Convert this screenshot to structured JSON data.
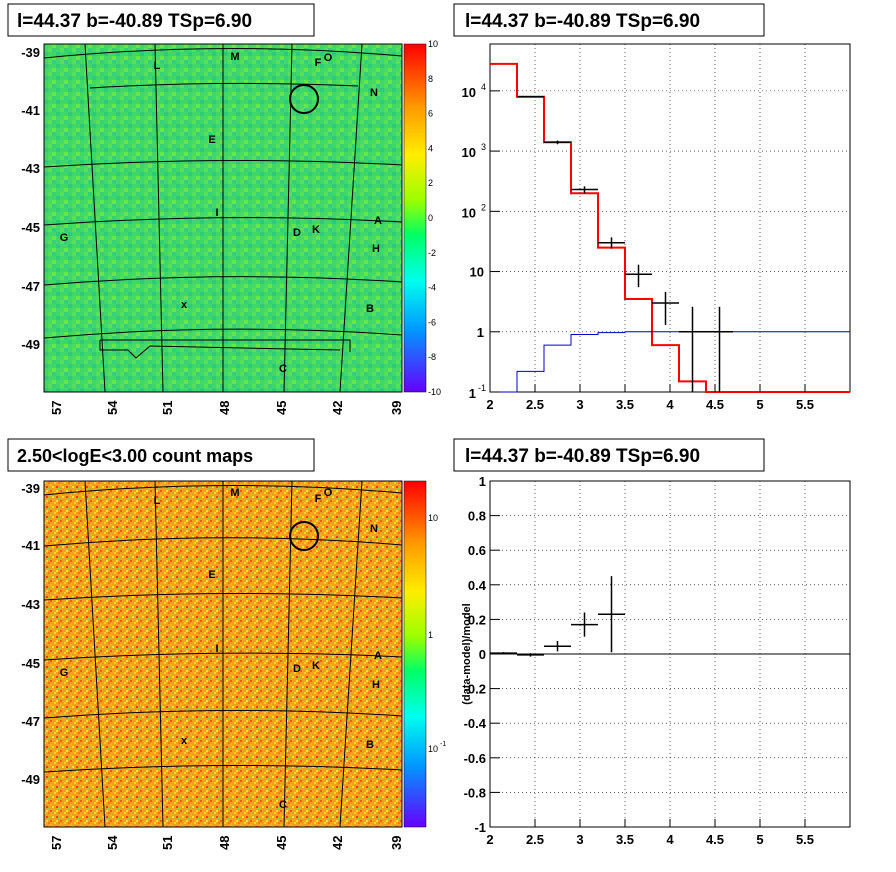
{
  "panels": {
    "top_left_title": "l=44.37 b=-40.89 TSp=6.90",
    "top_right_title": "l=44.37 b=-40.89 TSp=6.90",
    "bottom_left_title": "2.50<logE<3.00 count maps",
    "bottom_right_title": "l=44.37 b=-40.89 TSp=6.90"
  },
  "maps": {
    "x_ticks": [
      "57",
      "54",
      "51",
      "48",
      "45",
      "42",
      "39"
    ],
    "y_ticks": [
      "-39",
      "-41",
      "-43",
      "-45",
      "-47",
      "-49"
    ],
    "colorbar_top_ticks": [
      "10",
      "8",
      "6",
      "4",
      "2",
      "0",
      "-2",
      "-4",
      "-6",
      "-8",
      "-10"
    ],
    "colorbar_bottom_ticks": [
      "10",
      "1",
      "10",
      "-1"
    ],
    "source_labels": [
      {
        "t": "M"
      },
      {
        "t": "L"
      },
      {
        "t": "F"
      },
      {
        "t": "O"
      },
      {
        "t": "N"
      },
      {
        "t": "E"
      },
      {
        "t": "I"
      },
      {
        "t": "D"
      },
      {
        "t": "K"
      },
      {
        "t": "A"
      },
      {
        "t": "H"
      },
      {
        "t": "G"
      },
      {
        "t": "B"
      },
      {
        "t": "C"
      },
      {
        "t": "x"
      }
    ]
  },
  "chart_data": [
    {
      "type": "line",
      "panel": "top_right",
      "title": "l=44.37 b=-40.89 TSp=6.90",
      "xlabel": "",
      "ylabel": "",
      "xlim": [
        2.0,
        6.0
      ],
      "ylim": [
        0.1,
        60000
      ],
      "yscale": "log",
      "grid": true,
      "x_ticks": [
        "2",
        "2.5",
        "3",
        "3.5",
        "4",
        "4.5",
        "5",
        "5.5"
      ],
      "y_ticks": [
        {
          "label": "1",
          "exp": "-1",
          "base": "10"
        },
        {
          "label": "1",
          "exp": "",
          "base": ""
        },
        {
          "label": "10",
          "exp": "",
          "base": ""
        },
        {
          "label": "10",
          "exp": "2",
          "base": "10"
        },
        {
          "label": "10",
          "exp": "3",
          "base": "10"
        },
        {
          "label": "10",
          "exp": "4",
          "base": "10"
        }
      ],
      "series": [
        {
          "color": "#ff0000",
          "kind": "step",
          "edges": [
            2.0,
            2.3,
            2.6,
            2.9,
            3.2,
            3.5,
            3.8,
            4.1,
            4.4,
            6.0
          ],
          "values": [
            28000,
            8000,
            1400,
            200,
            25,
            3.5,
            0.6,
            0.15,
            0.1
          ]
        },
        {
          "color": "#0000cc",
          "kind": "step",
          "edges": [
            2.0,
            2.3,
            2.6,
            2.9,
            3.2,
            3.5,
            3.8,
            4.1,
            4.4,
            6.0
          ],
          "values": [
            0.05,
            0.22,
            0.6,
            0.9,
            0.97,
            1.0,
            1.0,
            1.0,
            1.0
          ]
        },
        {
          "color": "#000000",
          "kind": "errorbar",
          "points": [
            {
              "x": 2.45,
              "xerr": 0.15,
              "y": 8000,
              "ylo": 7800,
              "yhi": 8200
            },
            {
              "x": 2.75,
              "xerr": 0.15,
              "y": 1400,
              "ylo": 1300,
              "yhi": 1500
            },
            {
              "x": 3.05,
              "xerr": 0.15,
              "y": 230,
              "ylo": 200,
              "yhi": 260
            },
            {
              "x": 3.35,
              "xerr": 0.15,
              "y": 30,
              "ylo": 24,
              "yhi": 37
            },
            {
              "x": 3.65,
              "xerr": 0.15,
              "y": 9,
              "ylo": 5.5,
              "yhi": 13
            },
            {
              "x": 3.95,
              "xerr": 0.15,
              "y": 3,
              "ylo": 1.3,
              "yhi": 4.6
            },
            {
              "x": 4.25,
              "xerr": 0.15,
              "y": 1,
              "ylo": 0.1,
              "yhi": 2.6
            },
            {
              "x": 4.55,
              "xerr": 0.15,
              "y": 1,
              "ylo": 0.1,
              "yhi": 2.6
            }
          ]
        }
      ]
    },
    {
      "type": "scatter",
      "panel": "bottom_right",
      "title": "l=44.37 b=-40.89 TSp=6.90",
      "xlabel": "",
      "ylabel": "(data-model)/model",
      "xlim": [
        2.0,
        6.0
      ],
      "ylim": [
        -1,
        1
      ],
      "grid": true,
      "x_ticks": [
        "2",
        "2.5",
        "3",
        "3.5",
        "4",
        "4.5",
        "5",
        "5.5"
      ],
      "y_ticks": [
        "-1",
        "-0.8",
        "-0.6",
        "-0.4",
        "-0.2",
        "0",
        "0.2",
        "0.4",
        "0.6",
        "0.8",
        "1"
      ],
      "points": [
        {
          "x": 2.15,
          "xerr": 0.15,
          "y": 0.005,
          "yerr": 0.006
        },
        {
          "x": 2.45,
          "xerr": 0.15,
          "y": -0.005,
          "yerr": 0.01
        },
        {
          "x": 2.75,
          "xerr": 0.15,
          "y": 0.045,
          "yerr": 0.03
        },
        {
          "x": 3.05,
          "xerr": 0.15,
          "y": 0.17,
          "yerr": 0.07
        },
        {
          "x": 3.35,
          "xerr": 0.15,
          "y": 0.23,
          "yerr": 0.22
        }
      ]
    }
  ]
}
